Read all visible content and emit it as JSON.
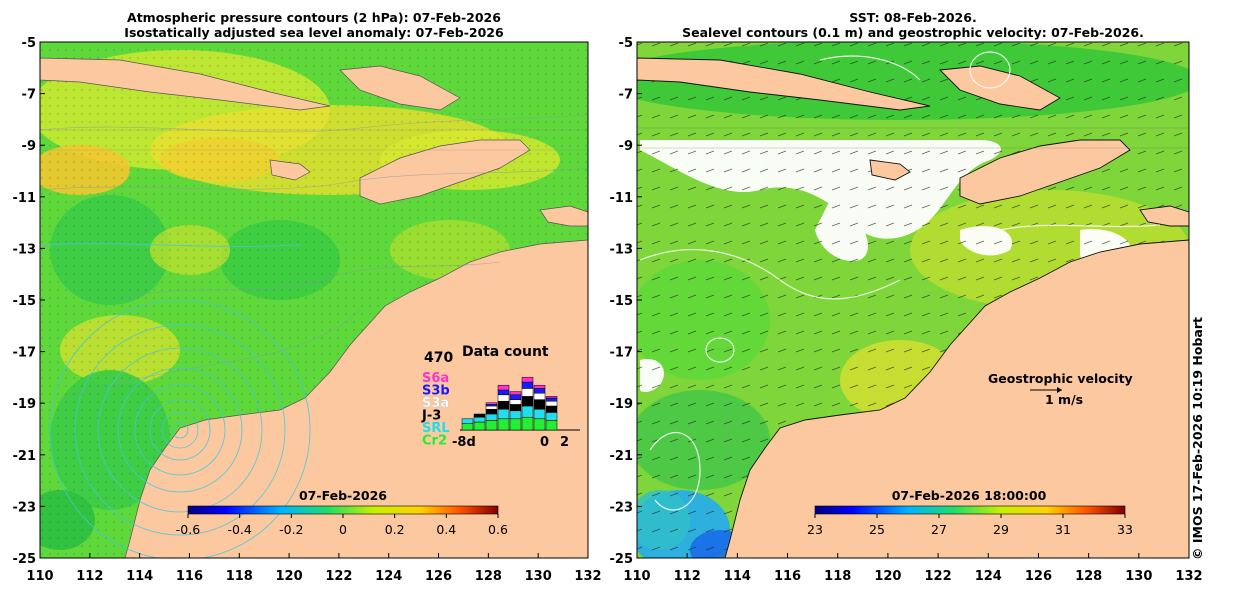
{
  "left_panel": {
    "title_line1": "Atmospheric pressure contours (2 hPa): 07-Feb-2026",
    "title_line2": "Isostatically adjusted sea level anomaly: 07-Feb-2026",
    "colorbar_date": "07-Feb-2026",
    "colorbar_ticks": [
      "-0.6",
      "-0.4",
      "-0.2",
      "0",
      "0.2",
      "0.4",
      "0.6"
    ],
    "colorbar_range": [
      -0.6,
      0.6
    ],
    "inset": {
      "title": "Data count",
      "max_count": "470",
      "missions": [
        {
          "label": "S6a",
          "color": "#ff33cc"
        },
        {
          "label": "S3b",
          "color": "#1a1aff"
        },
        {
          "label": "S3a",
          "color": "#ffffff"
        },
        {
          "label": "J-3",
          "color": "#000000"
        },
        {
          "label": "SRL",
          "color": "#22ddee"
        },
        {
          "label": "Cr2",
          "color": "#22ee33"
        }
      ],
      "x_start_label": "-8d",
      "x_zero_label": "0",
      "x_end_label": "2"
    }
  },
  "right_panel": {
    "title_line1": "SST: 08-Feb-2026.",
    "title_line2": "Sealevel contours (0.1 m) and geostrophic velocity: 07-Feb-2026.",
    "colorbar_date": "07-Feb-2026 18:00:00",
    "colorbar_ticks": [
      "23",
      "25",
      "27",
      "29",
      "31",
      "33"
    ],
    "colorbar_range": [
      23,
      33
    ],
    "velocity_label": "Geostrophic velocity",
    "velocity_scale": "1 m/s"
  },
  "axes": {
    "lat_ticks": [
      "-5",
      "-7",
      "-9",
      "-11",
      "-13",
      "-15",
      "-17",
      "-19",
      "-21",
      "-23",
      "-25"
    ],
    "lon_ticks": [
      "110",
      "112",
      "114",
      "116",
      "118",
      "120",
      "122",
      "124",
      "126",
      "128",
      "130",
      "132"
    ]
  },
  "colors": {
    "land": "#fbc8a0",
    "sla_base": "#5ed83a",
    "sst_base": "#7ed63a"
  },
  "copyright": "© IMOS 17-Feb-2026 10:19 Hobart"
}
